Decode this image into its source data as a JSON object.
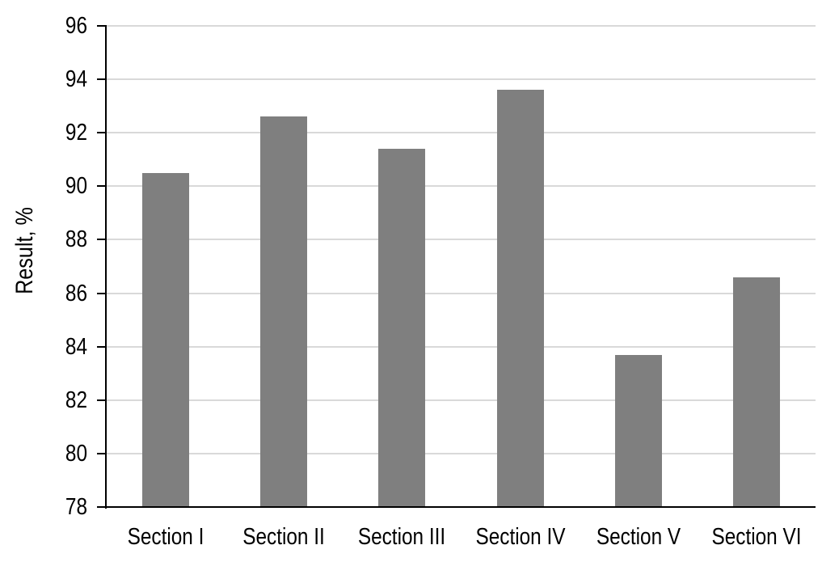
{
  "chart_data": {
    "type": "bar",
    "title": "",
    "xlabel": "",
    "ylabel": "Result, %",
    "categories": [
      "Section I",
      "Section II",
      "Section III",
      "Section IV",
      "Section V",
      "Section VI"
    ],
    "values": [
      90.5,
      92.6,
      91.4,
      93.6,
      83.7,
      86.6
    ],
    "ylim": [
      78,
      96
    ],
    "yticks": [
      78,
      80,
      82,
      84,
      86,
      88,
      90,
      92,
      94,
      96
    ],
    "grid": "horizontal",
    "legend": "none",
    "bar_color": "#7F7F7F",
    "gridline_color": "#D9D9D9",
    "axis_color": "#000000",
    "text_color": "#000000",
    "background": "#FFFFFF"
  }
}
